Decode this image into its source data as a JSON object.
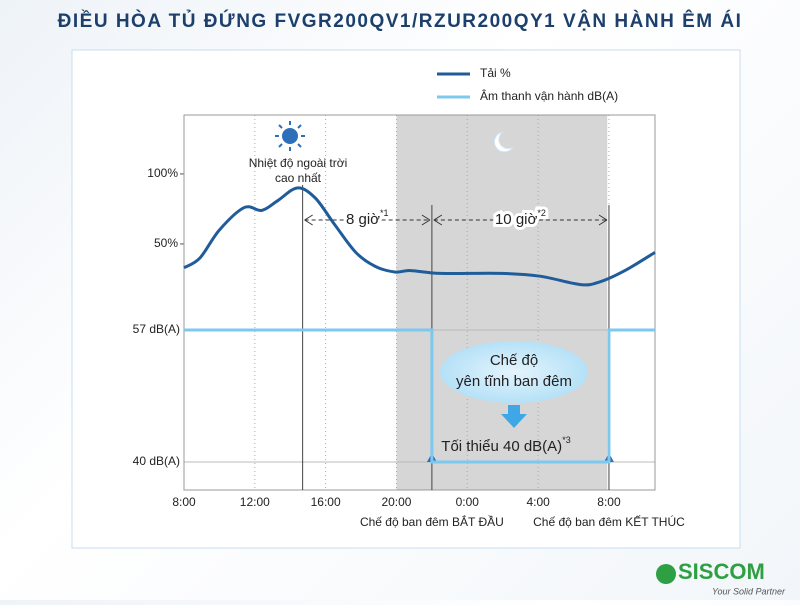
{
  "chart_data": {
    "type": "line",
    "title": "ĐIỀU HÒA TỦ ĐỨNG FVGR200QV1/RZUR200QY1 VẬN HÀNH ÊM ÁI",
    "xlim": [
      8,
      34.6
    ],
    "xticks": [
      {
        "value": 8,
        "label": "8:00"
      },
      {
        "value": 12,
        "label": "12:00"
      },
      {
        "value": 16,
        "label": "16:00"
      },
      {
        "value": 20,
        "label": "20:00"
      },
      {
        "value": 24,
        "label": "0:00"
      },
      {
        "value": 28,
        "label": "4:00"
      },
      {
        "value": 32,
        "label": "8:00"
      }
    ],
    "ylim": [
      -125.7,
      142.1
    ],
    "yticks": [
      {
        "value": 100,
        "label": "100%"
      },
      {
        "value": 50,
        "label": "50%"
      }
    ],
    "y2lim": [
      36.4,
      84.7
    ],
    "y2ticks": [
      {
        "value": 57,
        "label": "57 dB(A)"
      },
      {
        "value": 40,
        "label": "40 dB(A)"
      }
    ],
    "series": [
      {
        "name": "Tải %",
        "color": "#1f5c99",
        "x": [
          8,
          8.9,
          10,
          11.4,
          12.4,
          13.3,
          14.4,
          15.4,
          16.5,
          17.7,
          18.8,
          19.9,
          20.8,
          22.5,
          25.9,
          28.1,
          30.4,
          31.5,
          32.9,
          34.6
        ],
        "values": [
          33,
          40,
          60,
          76,
          74,
          81,
          90,
          83,
          64,
          44,
          34,
          30,
          31,
          29,
          29,
          27,
          21,
          23,
          31,
          44
        ]
      },
      {
        "name": "Âm thanh vận hành dB(A)",
        "color": "#7cc8ee",
        "axis": "y2",
        "x": [
          8,
          22,
          22,
          32,
          32,
          34.6
        ],
        "values": [
          57,
          57,
          40,
          40,
          57,
          57
        ]
      }
    ],
    "shaded_range": [
      20,
      31.9
    ],
    "peak_x": 14.7,
    "start_x": 22,
    "end_x": 32,
    "annotations": {
      "peak": [
        "Nhiệt độ ngoài trời",
        "cao nhất"
      ],
      "span1": {
        "text": "8 giờ",
        "note": "*1"
      },
      "span2": {
        "text": "10 giờ",
        "note": "*2"
      },
      "quiet": [
        "Chế độ",
        "yên tĩnh ban đêm"
      ],
      "minimum": {
        "text": "Tối thiểu 40 dB(A)",
        "note": "*3"
      },
      "start": "Chế độ ban đêm BẮT ĐẦU",
      "end": "Chế độ ban đêm KẾT THÚC"
    }
  },
  "logo": {
    "name": "SISCOM",
    "tagline": "Your Solid Partner"
  }
}
